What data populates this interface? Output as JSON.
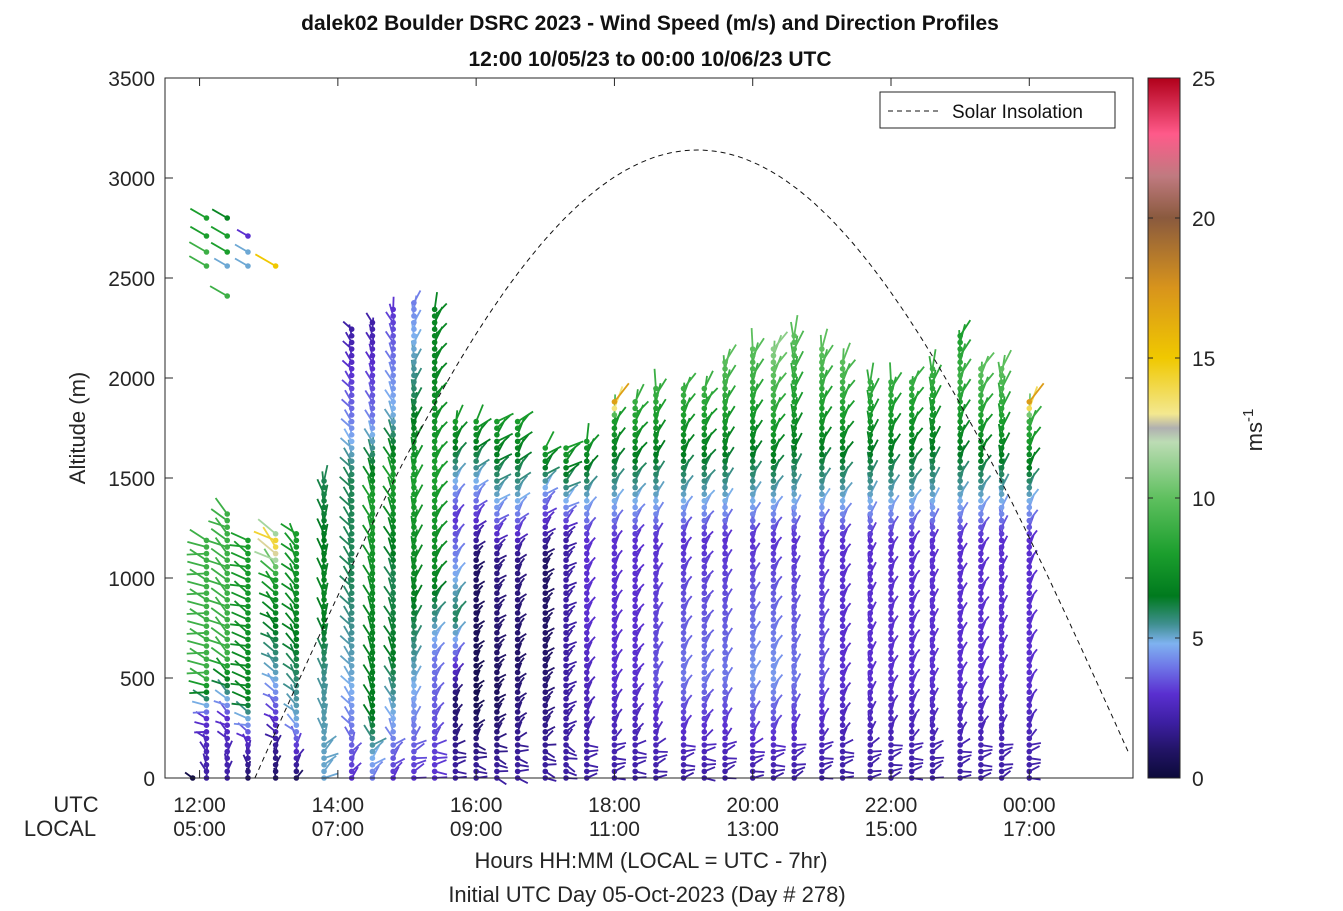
{
  "chart_data": {
    "type": "wind-barb-profile",
    "title_line1": "dalek02 Boulder DSRC 2023 - Wind Speed (m/s) and Direction Profiles",
    "title_line2": "12:00 10/05/23 to 00:00 10/06/23  UTC",
    "ylabel": "Altitude (m)",
    "xlabel_line1": "Hours HH:MM  (LOCAL = UTC - 7hr)",
    "xlabel_line2": "Initial UTC Day 05-Oct-2023 (Day # 278)",
    "ylim": [
      0,
      3500
    ],
    "yticks": [
      0,
      500,
      1000,
      1500,
      2000,
      2500,
      3000,
      3500
    ],
    "xlim_hours": [
      11.5,
      25.5
    ],
    "xticks": [
      {
        "hour": 12,
        "utc": "12:00",
        "local": "05:00"
      },
      {
        "hour": 14,
        "utc": "14:00",
        "local": "07:00"
      },
      {
        "hour": 16,
        "utc": "16:00",
        "local": "09:00"
      },
      {
        "hour": 18,
        "utc": "18:00",
        "local": "11:00"
      },
      {
        "hour": 20,
        "utc": "20:00",
        "local": "13:00"
      },
      {
        "hour": 22,
        "utc": "22:00",
        "local": "15:00"
      },
      {
        "hour": 24,
        "utc": "00:00",
        "local": "17:00"
      }
    ],
    "row_labels": {
      "utc": "UTC",
      "local": "LOCAL"
    },
    "legend": {
      "label": "Solar Insolation",
      "position": "top-right"
    },
    "solar_insolation": {
      "sunrise_hour": 12.8,
      "sunset_hour": 25.6,
      "peak_hour": 19.2,
      "peak_altitude": 3140
    },
    "colorbar": {
      "label": "ms",
      "label_exponent": "-1",
      "range": [
        0,
        25
      ],
      "ticks": [
        0,
        5,
        10,
        15,
        20,
        25
      ],
      "stops": [
        {
          "v": 0,
          "c": "#0c0a3a"
        },
        {
          "v": 1,
          "c": "#221466"
        },
        {
          "v": 2,
          "c": "#3d1fa3"
        },
        {
          "v": 3,
          "c": "#5a2fd0"
        },
        {
          "v": 4,
          "c": "#6f78e8"
        },
        {
          "v": 4.8,
          "c": "#7fb2f0"
        },
        {
          "v": 5.5,
          "c": "#3f8f8f"
        },
        {
          "v": 6.5,
          "c": "#007a1e"
        },
        {
          "v": 8,
          "c": "#1b9e2d"
        },
        {
          "v": 10,
          "c": "#5fc05f"
        },
        {
          "v": 12,
          "c": "#bcdcb4"
        },
        {
          "v": 12.5,
          "c": "#b0b0b0"
        },
        {
          "v": 13,
          "c": "#f3e890"
        },
        {
          "v": 15,
          "c": "#f0c800"
        },
        {
          "v": 17.5,
          "c": "#d8941c"
        },
        {
          "v": 20,
          "c": "#8a5a3e"
        },
        {
          "v": 21.5,
          "c": "#c07a80"
        },
        {
          "v": 23,
          "c": "#ff5a8a"
        },
        {
          "v": 25,
          "c": "#b0001a"
        }
      ]
    },
    "barb_columns": [
      {
        "hour": 11.9,
        "top_altitude": 0,
        "dir_deg": 270,
        "speed_profile": [
          [
            0,
            0.3
          ]
        ]
      },
      {
        "hour": 12.1,
        "top_altitude": 1200,
        "dir_deg": 285,
        "speed_profile": [
          [
            0,
            2
          ],
          [
            300,
            3
          ],
          [
            500,
            9
          ],
          [
            1200,
            9
          ]
        ],
        "extra": [
          [
            2560,
            9
          ],
          [
            2630,
            9
          ],
          [
            2710,
            8
          ],
          [
            2800,
            8
          ]
        ]
      },
      {
        "hour": 12.4,
        "top_altitude": 1350,
        "dir_deg": 300,
        "speed_profile": [
          [
            0,
            2
          ],
          [
            300,
            3
          ],
          [
            600,
            9
          ],
          [
            1350,
            9
          ]
        ],
        "extra": [
          [
            2410,
            9
          ],
          [
            2560,
            5
          ],
          [
            2630,
            8
          ],
          [
            2710,
            8
          ],
          [
            2800,
            7
          ]
        ]
      },
      {
        "hour": 12.7,
        "top_altitude": 1200,
        "dir_deg": 300,
        "speed_profile": [
          [
            0,
            1
          ],
          [
            200,
            3
          ],
          [
            400,
            7
          ],
          [
            1200,
            8
          ]
        ],
        "extra": [
          [
            2560,
            5
          ],
          [
            2630,
            5
          ],
          [
            2710,
            3
          ]
        ]
      },
      {
        "hour": 13.1,
        "top_altitude": 1250,
        "dir_deg": 310,
        "speed_profile": [
          [
            0,
            1
          ],
          [
            200,
            2
          ],
          [
            500,
            5
          ],
          [
            1000,
            8
          ],
          [
            1100,
            12
          ],
          [
            1180,
            15
          ],
          [
            1250,
            9
          ]
        ],
        "extra": [
          [
            2560,
            15
          ]
        ]
      },
      {
        "hour": 13.4,
        "top_altitude": 1250,
        "dir_deg": 315,
        "speed_profile": [
          [
            0,
            1
          ],
          [
            300,
            5
          ],
          [
            800,
            7
          ],
          [
            1250,
            8
          ]
        ]
      },
      {
        "hour": 13.8,
        "top_altitude": 1500,
        "dir_deg": 0,
        "speed_profile": [
          [
            0,
            5
          ],
          [
            500,
            5.5
          ],
          [
            900,
            7
          ],
          [
            1500,
            6
          ]
        ]
      },
      {
        "hour": 14.2,
        "top_altitude": 2250,
        "dir_deg": 330,
        "speed_profile": [
          [
            0,
            3
          ],
          [
            500,
            5
          ],
          [
            1000,
            6
          ],
          [
            1500,
            6
          ],
          [
            1800,
            4
          ],
          [
            2250,
            2
          ]
        ]
      },
      {
        "hour": 14.5,
        "top_altitude": 2300,
        "dir_deg": 340,
        "speed_profile": [
          [
            0,
            4
          ],
          [
            300,
            6.5
          ],
          [
            800,
            7
          ],
          [
            1400,
            8
          ],
          [
            1800,
            4
          ],
          [
            2300,
            2
          ]
        ]
      },
      {
        "hour": 14.8,
        "top_altitude": 2350,
        "dir_deg": 350,
        "speed_profile": [
          [
            0,
            3
          ],
          [
            600,
            6.5
          ],
          [
            1000,
            6
          ],
          [
            1500,
            8
          ],
          [
            1800,
            5
          ],
          [
            2350,
            3
          ]
        ]
      },
      {
        "hour": 15.1,
        "top_altitude": 2400,
        "dir_deg": 10,
        "speed_profile": [
          [
            0,
            3
          ],
          [
            500,
            5
          ],
          [
            1000,
            7
          ],
          [
            1500,
            8
          ],
          [
            1900,
            6
          ],
          [
            2400,
            4
          ]
        ]
      },
      {
        "hour": 15.4,
        "top_altitude": 2350,
        "dir_deg": 20,
        "speed_profile": [
          [
            0,
            3
          ],
          [
            600,
            4
          ],
          [
            1000,
            7
          ],
          [
            1500,
            8
          ],
          [
            2000,
            7
          ],
          [
            2350,
            7
          ]
        ]
      },
      {
        "hour": 15.7,
        "top_altitude": 1800,
        "dir_deg": 30,
        "speed_profile": [
          [
            0,
            2
          ],
          [
            400,
            1
          ],
          [
            800,
            6
          ],
          [
            1300,
            3
          ],
          [
            1800,
            8
          ]
        ]
      },
      {
        "hour": 16.0,
        "top_altitude": 1800,
        "dir_deg": 40,
        "speed_profile": [
          [
            0,
            2
          ],
          [
            400,
            0.5
          ],
          [
            1100,
            1
          ],
          [
            1400,
            4
          ],
          [
            1800,
            8
          ]
        ]
      },
      {
        "hour": 16.3,
        "top_altitude": 1800,
        "dir_deg": 40,
        "speed_profile": [
          [
            0,
            2
          ],
          [
            400,
            0.8
          ],
          [
            1100,
            1.5
          ],
          [
            1400,
            5
          ],
          [
            1800,
            8
          ]
        ]
      },
      {
        "hour": 16.6,
        "top_altitude": 1800,
        "dir_deg": 45,
        "speed_profile": [
          [
            0,
            2
          ],
          [
            600,
            1
          ],
          [
            1100,
            1.5
          ],
          [
            1400,
            5
          ],
          [
            1800,
            8
          ]
        ]
      },
      {
        "hour": 17.0,
        "top_altitude": 1650,
        "dir_deg": 45,
        "speed_profile": [
          [
            0,
            2
          ],
          [
            600,
            1
          ],
          [
            1100,
            1
          ],
          [
            1400,
            4
          ],
          [
            1650,
            8
          ]
        ]
      },
      {
        "hour": 17.3,
        "top_altitude": 1650,
        "dir_deg": 45,
        "speed_profile": [
          [
            0,
            2
          ],
          [
            800,
            2
          ],
          [
            1200,
            2
          ],
          [
            1400,
            5
          ],
          [
            1650,
            8
          ]
        ]
      },
      {
        "hour": 17.6,
        "top_altitude": 1700,
        "dir_deg": 30,
        "speed_profile": [
          [
            0,
            2
          ],
          [
            800,
            3
          ],
          [
            1200,
            3
          ],
          [
            1400,
            5
          ],
          [
            1700,
            8
          ]
        ]
      },
      {
        "hour": 18.0,
        "top_altitude": 1900,
        "dir_deg": 20,
        "speed_profile": [
          [
            0,
            2
          ],
          [
            500,
            3
          ],
          [
            1200,
            3
          ],
          [
            1400,
            5
          ],
          [
            1800,
            8
          ],
          [
            1900,
            19
          ]
        ]
      },
      {
        "hour": 18.3,
        "top_altitude": 1900,
        "dir_deg": 20,
        "speed_profile": [
          [
            0,
            2
          ],
          [
            500,
            3
          ],
          [
            1200,
            3
          ],
          [
            1400,
            5
          ],
          [
            1900,
            9
          ]
        ]
      },
      {
        "hour": 18.6,
        "top_altitude": 1950,
        "dir_deg": 20,
        "speed_profile": [
          [
            0,
            2
          ],
          [
            500,
            3.5
          ],
          [
            1200,
            3
          ],
          [
            1400,
            5
          ],
          [
            1950,
            9
          ]
        ]
      },
      {
        "hour": 19.0,
        "top_altitude": 1950,
        "dir_deg": 20,
        "speed_profile": [
          [
            0,
            2
          ],
          [
            500,
            4
          ],
          [
            1200,
            3
          ],
          [
            1400,
            5
          ],
          [
            1950,
            9
          ]
        ]
      },
      {
        "hour": 19.3,
        "top_altitude": 1950,
        "dir_deg": 20,
        "speed_profile": [
          [
            0,
            2
          ],
          [
            500,
            4
          ],
          [
            1200,
            3
          ],
          [
            1400,
            5
          ],
          [
            1950,
            9
          ]
        ]
      },
      {
        "hour": 19.6,
        "top_altitude": 2100,
        "dir_deg": 20,
        "speed_profile": [
          [
            0,
            2
          ],
          [
            500,
            4
          ],
          [
            1200,
            3
          ],
          [
            1400,
            5
          ],
          [
            2100,
            10
          ]
        ]
      },
      {
        "hour": 20.0,
        "top_altitude": 2150,
        "dir_deg": 15,
        "speed_profile": [
          [
            0,
            2
          ],
          [
            500,
            4.5
          ],
          [
            1200,
            3
          ],
          [
            1400,
            5
          ],
          [
            2150,
            10
          ]
        ]
      },
      {
        "hour": 20.3,
        "top_altitude": 2150,
        "dir_deg": 15,
        "speed_profile": [
          [
            0,
            2
          ],
          [
            500,
            4.5
          ],
          [
            1200,
            3
          ],
          [
            1400,
            5
          ],
          [
            2150,
            11
          ]
        ]
      },
      {
        "hour": 20.6,
        "top_altitude": 2220,
        "dir_deg": 15,
        "speed_profile": [
          [
            0,
            2
          ],
          [
            500,
            4
          ],
          [
            1200,
            3
          ],
          [
            1400,
            5
          ],
          [
            2220,
            10
          ]
        ]
      },
      {
        "hour": 21.0,
        "top_altitude": 2150,
        "dir_deg": 15,
        "speed_profile": [
          [
            0,
            2
          ],
          [
            500,
            3.5
          ],
          [
            1200,
            3
          ],
          [
            1400,
            5
          ],
          [
            2150,
            10
          ]
        ]
      },
      {
        "hour": 21.3,
        "top_altitude": 2100,
        "dir_deg": 15,
        "speed_profile": [
          [
            0,
            2
          ],
          [
            500,
            3
          ],
          [
            1200,
            3
          ],
          [
            1400,
            5
          ],
          [
            2100,
            10
          ]
        ]
      },
      {
        "hour": 21.7,
        "top_altitude": 2000,
        "dir_deg": 15,
        "speed_profile": [
          [
            0,
            2
          ],
          [
            500,
            3
          ],
          [
            1200,
            3
          ],
          [
            1400,
            5
          ],
          [
            2000,
            9
          ]
        ]
      },
      {
        "hour": 22.0,
        "top_altitude": 2000,
        "dir_deg": 15,
        "speed_profile": [
          [
            0,
            2
          ],
          [
            500,
            3
          ],
          [
            1200,
            3
          ],
          [
            1400,
            5
          ],
          [
            2000,
            9
          ]
        ]
      },
      {
        "hour": 22.3,
        "top_altitude": 2000,
        "dir_deg": 15,
        "speed_profile": [
          [
            0,
            2
          ],
          [
            500,
            3
          ],
          [
            1200,
            3
          ],
          [
            1400,
            5
          ],
          [
            2000,
            9
          ]
        ]
      },
      {
        "hour": 22.6,
        "top_altitude": 2050,
        "dir_deg": 15,
        "speed_profile": [
          [
            0,
            2
          ],
          [
            500,
            3
          ],
          [
            1200,
            3
          ],
          [
            1400,
            5
          ],
          [
            2050,
            9
          ]
        ]
      },
      {
        "hour": 23.0,
        "top_altitude": 2220,
        "dir_deg": 15,
        "speed_profile": [
          [
            0,
            2
          ],
          [
            500,
            3
          ],
          [
            1200,
            3
          ],
          [
            1400,
            5
          ],
          [
            2000,
            9
          ],
          [
            2220,
            8
          ]
        ]
      },
      {
        "hour": 23.3,
        "top_altitude": 2050,
        "dir_deg": 15,
        "speed_profile": [
          [
            0,
            2
          ],
          [
            500,
            3
          ],
          [
            1200,
            3
          ],
          [
            1400,
            5
          ],
          [
            2050,
            10
          ]
        ]
      },
      {
        "hour": 23.6,
        "top_altitude": 2050,
        "dir_deg": 15,
        "speed_profile": [
          [
            0,
            2
          ],
          [
            500,
            3
          ],
          [
            1200,
            3
          ],
          [
            1400,
            5
          ],
          [
            2050,
            10
          ]
        ]
      },
      {
        "hour": 24.0,
        "top_altitude": 1900,
        "dir_deg": 20,
        "speed_profile": [
          [
            0,
            2
          ],
          [
            500,
            3
          ],
          [
            1200,
            3
          ],
          [
            1400,
            5
          ],
          [
            1800,
            9
          ],
          [
            1900,
            19
          ]
        ]
      }
    ]
  }
}
